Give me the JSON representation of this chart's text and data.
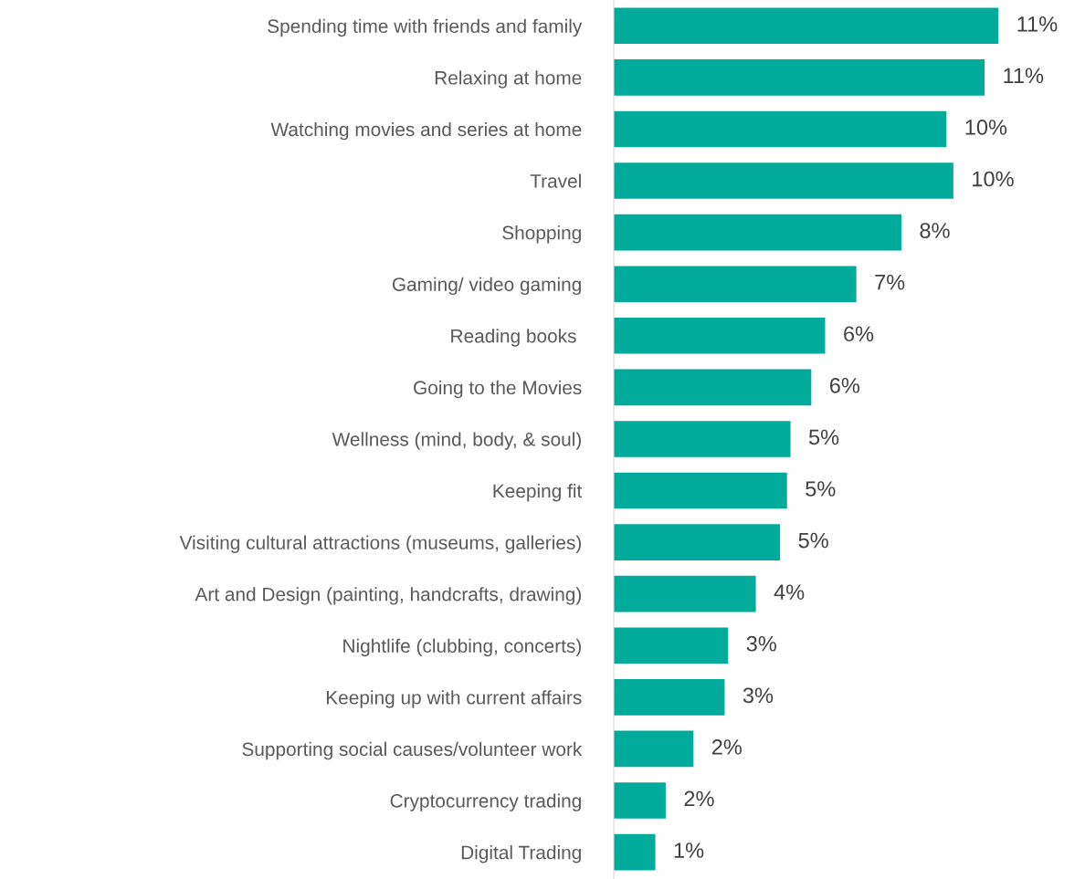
{
  "chart_data": {
    "type": "bar",
    "orientation": "horizontal",
    "categories": [
      "Spending time with friends and family",
      "Relaxing at home",
      "Watching movies and series at home",
      "Travel",
      "Shopping",
      "Gaming/ video gaming",
      "Reading books ",
      "Going to the Movies",
      "Wellness (mind, body, & soul)",
      "Keeping fit",
      "Visiting cultural attractions (museums, galleries)",
      "Art and Design (painting, handcrafts, drawing)",
      "Nightlife (clubbing, concerts)",
      "Keeping up with current affairs",
      "Supporting social causes/volunteer work",
      "Cryptocurrency trading",
      "Digital Trading"
    ],
    "values": [
      11.1,
      10.7,
      9.6,
      9.8,
      8.3,
      7.0,
      6.1,
      5.7,
      5.1,
      5.0,
      4.8,
      4.1,
      3.3,
      3.2,
      2.3,
      1.5,
      1.2
    ],
    "value_labels": [
      "11%",
      "11%",
      "10%",
      "10%",
      "8%",
      "7%",
      "6%",
      "6%",
      "5%",
      "5%",
      "5%",
      "4%",
      "3%",
      "3%",
      "2%",
      "2%",
      "1%"
    ],
    "color": "#00ab9b",
    "tick_labels": "y",
    "grid": false,
    "legend": false
  }
}
